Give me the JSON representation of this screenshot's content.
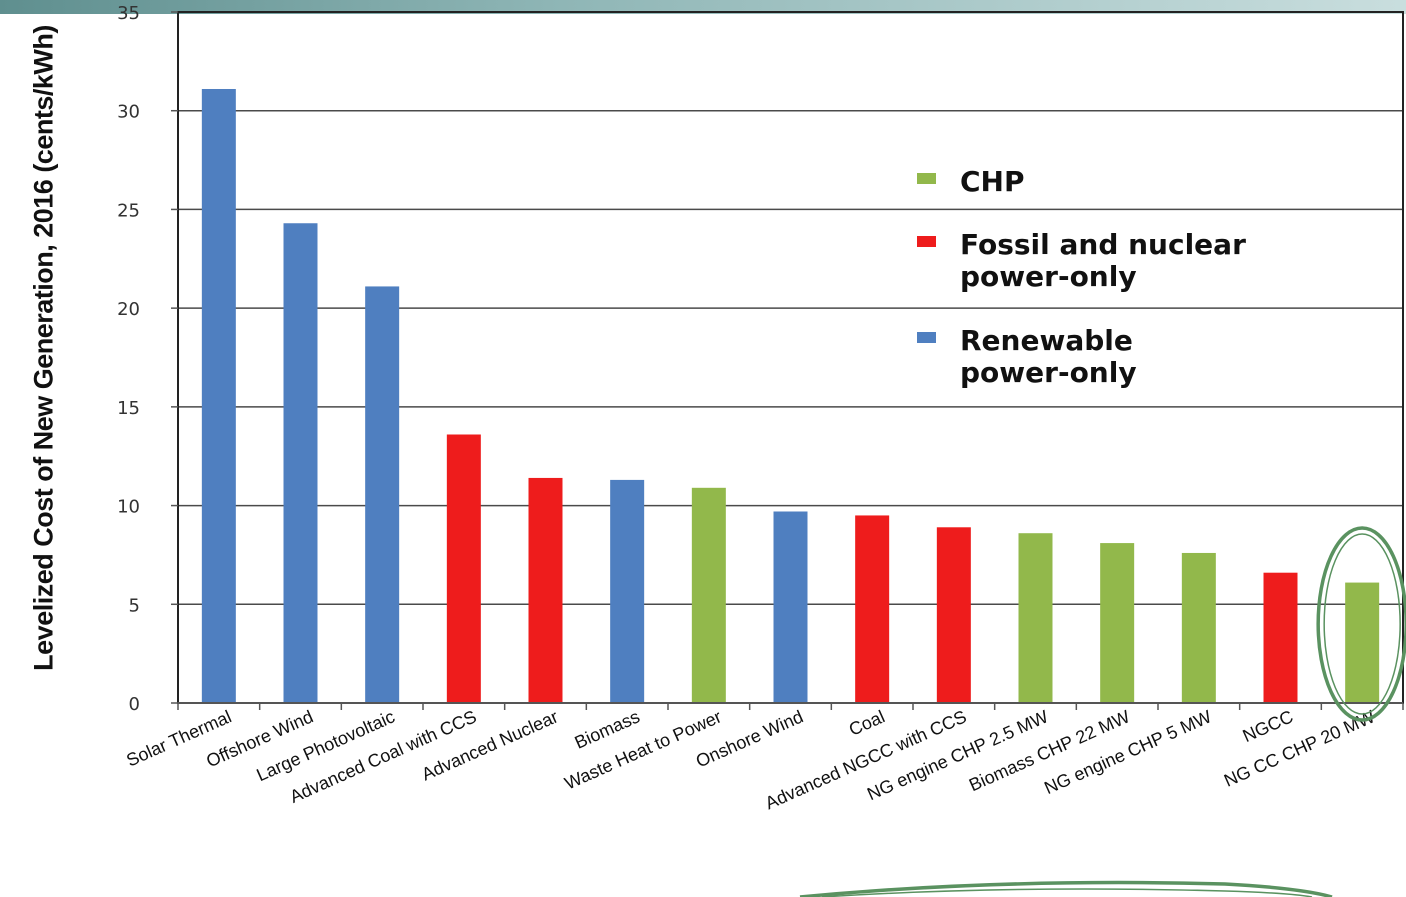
{
  "chart_data": {
    "type": "bar",
    "title": "",
    "xlabel": "",
    "ylabel": "Levelized Cost of New Generation, 2016 (cents/kWh)",
    "ylim": [
      0,
      35
    ],
    "yticks": [
      0,
      5,
      10,
      15,
      20,
      25,
      30,
      35
    ],
    "grid": true,
    "legend_placement": "upper-right",
    "categories": [
      "Solar Thermal",
      "Offshore Wind",
      "Large Photovoltaic",
      "Advanced Coal with CCS",
      "Advanced Nuclear",
      "Biomass",
      "Waste Heat to Power",
      "Onshore Wind",
      "Coal",
      "Advanced NGCC with CCS",
      "NG engine CHP 2.5 MW",
      "Biomass CHP 22 MW",
      "NG engine CHP 5 MW",
      "NGCC",
      "NG CC CHP 20 MW"
    ],
    "values": [
      31.1,
      24.3,
      21.1,
      13.6,
      11.4,
      11.3,
      10.9,
      9.7,
      9.5,
      8.9,
      8.6,
      8.1,
      7.6,
      6.6,
      6.1
    ],
    "groups": [
      "renewable",
      "renewable",
      "renewable",
      "fossil",
      "fossil",
      "renewable",
      "chp",
      "renewable",
      "fossil",
      "fossil",
      "chp",
      "chp",
      "chp",
      "fossil",
      "chp"
    ],
    "legend": [
      {
        "key": "chp",
        "lines": [
          "CHP"
        ],
        "color": "#92b84b"
      },
      {
        "key": "fossil",
        "lines": [
          "Fossil and nuclear",
          "power-only"
        ],
        "color": "#ee1c1c"
      },
      {
        "key": "renewable",
        "lines": [
          "Renewable",
          "power-only"
        ],
        "color": "#4f7fc0"
      }
    ],
    "highlight": {
      "category": "NG CC CHP 20 MW",
      "shape": "ellipse",
      "color": "#5a9260"
    }
  }
}
